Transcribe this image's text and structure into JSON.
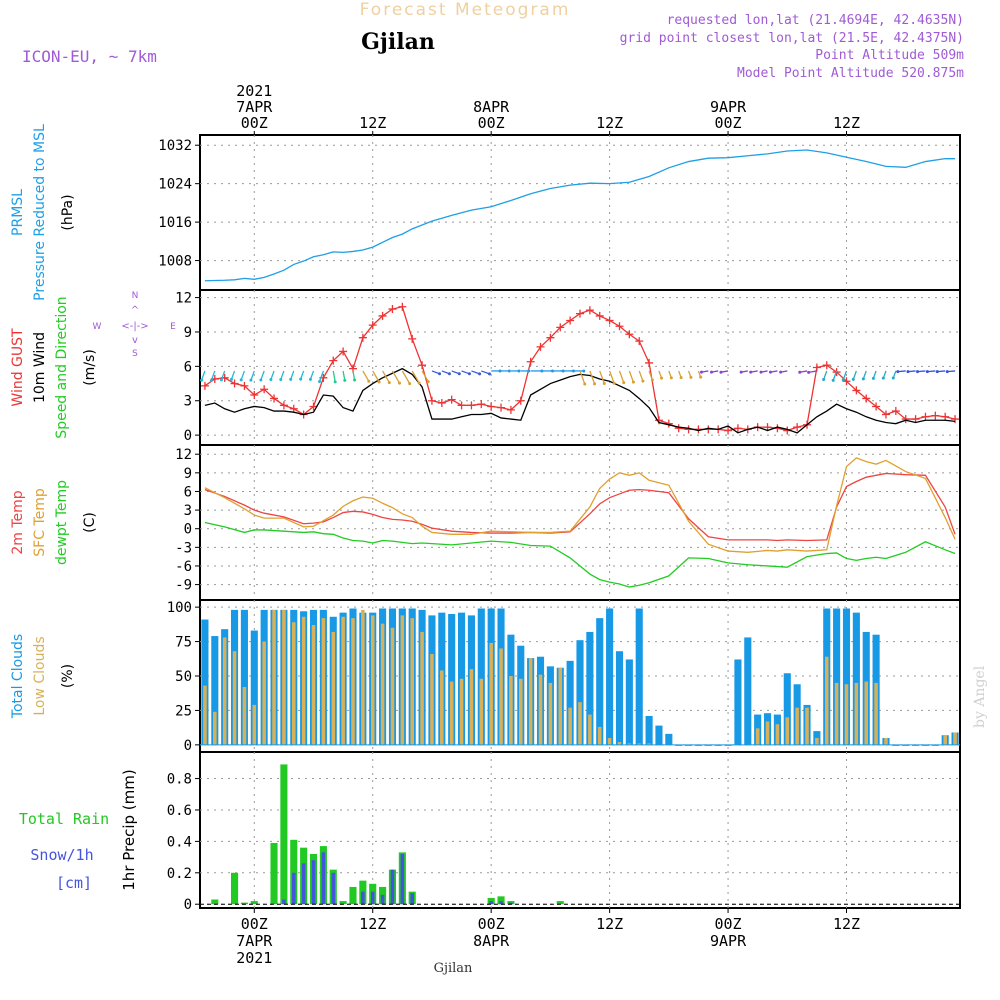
{
  "header": {
    "title": "Forecast Meteogram",
    "location": "Gjilan",
    "model": "ICON-EU, ~ 7km",
    "requested": "requested lon,lat (21.4694E, 42.4635N)",
    "grid_point": "grid point closest lon,lat (21.5E, 42.4375N)",
    "point_altitude": "Point Altitude 509m",
    "model_altitude": "Model Point Altitude 520.875m",
    "footer_location": "Gjilan",
    "watermark": "by Angel"
  },
  "time_axis": {
    "top_labels": [
      {
        "t": 0,
        "lines": [
          "2021",
          "7APR",
          "00Z"
        ]
      },
      {
        "t": 12,
        "lines": [
          "12Z"
        ]
      },
      {
        "t": 24,
        "lines": [
          "8APR",
          "00Z"
        ]
      },
      {
        "t": 36,
        "lines": [
          "12Z"
        ]
      },
      {
        "t": 48,
        "lines": [
          "9APR",
          "00Z"
        ]
      },
      {
        "t": 60,
        "lines": [
          "12Z"
        ]
      }
    ],
    "bottom_labels": [
      {
        "t": 0,
        "lines": [
          "00Z",
          "7APR",
          "2021"
        ]
      },
      {
        "t": 12,
        "lines": [
          "12Z"
        ]
      },
      {
        "t": 24,
        "lines": [
          "00Z",
          "8APR"
        ]
      },
      {
        "t": 36,
        "lines": [
          "12Z"
        ]
      },
      {
        "t": 48,
        "lines": [
          "00Z",
          "9APR"
        ]
      },
      {
        "t": 60,
        "lines": [
          "12Z"
        ]
      }
    ]
  },
  "colors": {
    "pressure": "#1f9fe6",
    "gust": "#ee3333",
    "wind": "#000000",
    "temp2m": "#ee4444",
    "sfc_temp": "#e0a030",
    "dewpt": "#22cc22",
    "total_clouds": "#1799e6",
    "low_clouds": "#d6b15a",
    "rain": "#22c922",
    "snow": "#4455dd",
    "purple": "#a05ad6",
    "title_orange": "#f0d0a0"
  },
  "chart_data": [
    {
      "type": "line",
      "name": "Pressure",
      "label_lines": [
        "PRMSL",
        "Pressure Reduced to MSL"
      ],
      "unit": "(hPa)",
      "ylim": [
        1002.5,
        1033.5
      ],
      "yticks": [
        1008,
        1016,
        1024,
        1032
      ],
      "x": [
        -5,
        -3,
        -2,
        -1,
        0,
        1,
        2,
        3,
        4,
        5,
        6,
        7,
        8,
        9,
        10,
        11,
        12,
        13,
        14,
        15,
        16,
        18,
        20,
        22,
        24,
        26,
        28,
        30,
        32,
        34,
        36,
        38,
        40,
        42,
        44,
        46,
        48,
        50,
        52,
        54,
        56,
        58,
        60,
        62,
        64,
        66,
        68,
        70,
        71
      ],
      "series": [
        {
          "name": "PRMSL",
          "values": [
            1003.8,
            1003.9,
            1004.0,
            1004.3,
            1004.1,
            1004.5,
            1005.2,
            1006.0,
            1007.2,
            1007.9,
            1008.8,
            1009.2,
            1009.8,
            1009.7,
            1009.9,
            1010.2,
            1010.8,
            1011.8,
            1012.8,
            1013.5,
            1014.6,
            1016.2,
            1017.4,
            1018.5,
            1019.2,
            1020.5,
            1021.9,
            1023.0,
            1023.7,
            1024.1,
            1024.0,
            1024.3,
            1025.5,
            1027.3,
            1028.6,
            1029.3,
            1029.4,
            1029.8,
            1030.2,
            1030.8,
            1031.0,
            1030.4,
            1029.5,
            1028.6,
            1027.6,
            1027.4,
            1028.6,
            1029.2,
            1029.2
          ]
        }
      ]
    },
    {
      "type": "line",
      "name": "Wind",
      "label_lines": [
        "Wind GUST",
        "10m Wind",
        "Speed and Direction"
      ],
      "unit": "(m/s)",
      "compass": "N  W <-|-> E  S",
      "ylim": [
        -0.6,
        12.4
      ],
      "yticks": [
        0,
        3,
        6,
        9,
        12
      ],
      "x": [
        -5,
        -4,
        -3,
        -2,
        -1,
        0,
        1,
        2,
        3,
        4,
        5,
        6,
        7,
        8,
        9,
        10,
        11,
        12,
        13,
        14,
        15,
        16,
        17,
        18,
        19,
        20,
        21,
        22,
        23,
        24,
        25,
        26,
        27,
        28,
        29,
        30,
        31,
        32,
        33,
        34,
        35,
        36,
        37,
        38,
        39,
        40,
        41,
        42,
        43,
        44,
        45,
        46,
        47,
        48,
        49,
        50,
        51,
        52,
        53,
        54,
        55,
        56,
        57,
        58,
        59,
        60,
        61,
        62,
        63,
        64,
        65,
        66,
        67,
        68,
        69,
        70,
        71
      ],
      "series": [
        {
          "name": "Wind GUST",
          "values": [
            4.3,
            4.9,
            5.0,
            4.5,
            4.3,
            3.5,
            4.0,
            3.2,
            2.6,
            2.3,
            1.8,
            2.5,
            5.0,
            6.5,
            7.3,
            5.8,
            8.5,
            9.6,
            10.4,
            11.0,
            11.2,
            8.4,
            6.1,
            3.0,
            2.8,
            3.1,
            2.6,
            2.6,
            2.7,
            2.5,
            2.4,
            2.2,
            3.0,
            6.4,
            7.7,
            8.5,
            9.4,
            10.0,
            10.6,
            10.9,
            10.4,
            10.0,
            9.5,
            8.8,
            8.2,
            6.3,
            1.3,
            1.0,
            0.6,
            0.5,
            0.5,
            0.5,
            0.5,
            0.4,
            0.6,
            0.5,
            0.7,
            0.7,
            0.6,
            0.4,
            0.7,
            0.9,
            5.9,
            6.1,
            5.5,
            4.7,
            3.9,
            3.2,
            2.5,
            1.8,
            2.1,
            1.4,
            1.4,
            1.6,
            1.7,
            1.6,
            1.4
          ]
        },
        {
          "name": "10m Wind",
          "values": [
            2.6,
            2.8,
            2.3,
            2.0,
            2.3,
            2.5,
            2.4,
            2.1,
            2.1,
            2.0,
            1.8,
            2.0,
            3.5,
            3.4,
            2.4,
            2.1,
            3.9,
            4.5,
            5.0,
            5.4,
            5.8,
            5.3,
            4.2,
            1.4,
            1.4,
            1.4,
            1.6,
            1.8,
            1.8,
            1.9,
            1.5,
            1.4,
            1.3,
            3.5,
            4.0,
            4.5,
            4.8,
            5.1,
            5.3,
            5.2,
            4.9,
            4.7,
            4.3,
            3.9,
            3.2,
            2.4,
            1.1,
            0.9,
            0.7,
            0.6,
            0.4,
            0.6,
            0.5,
            0.8,
            0.2,
            0.5,
            0.7,
            0.4,
            0.7,
            0.5,
            0.2,
            0.9,
            1.6,
            2.1,
            2.7,
            2.3,
            2.0,
            1.6,
            1.3,
            1.1,
            1.0,
            1.3,
            1.1,
            1.3,
            1.3,
            1.3,
            1.2
          ]
        }
      ],
      "direction_arrows": {
        "y": 5.6,
        "note": "wind barbs plotted along top of 10m wind trace"
      }
    },
    {
      "type": "line",
      "name": "Temperature",
      "label_lines": [
        "2m Temp",
        "SFC Temp",
        "dewpt Temp"
      ],
      "unit": "(C)",
      "ylim": [
        -11,
        13
      ],
      "yticks": [
        -9,
        -6,
        -3,
        0,
        3,
        6,
        9,
        12
      ],
      "x": [
        -5,
        -3,
        -1,
        0,
        1,
        3,
        5,
        6,
        7,
        8,
        9,
        10,
        11,
        12,
        13,
        14,
        15,
        16,
        17,
        18,
        20,
        22,
        24,
        26,
        28,
        30,
        32,
        34,
        35,
        36,
        37,
        38,
        39,
        40,
        42,
        44,
        46,
        48,
        50,
        52,
        53,
        54,
        56,
        58,
        59,
        60,
        61,
        62,
        63,
        64,
        66,
        68,
        70,
        71
      ],
      "series": [
        {
          "name": "2m Temp",
          "values": [
            6.3,
            5.2,
            3.8,
            3.0,
            2.5,
            1.9,
            0.8,
            0.9,
            1.1,
            1.8,
            2.6,
            2.8,
            2.7,
            2.3,
            1.8,
            1.5,
            1.4,
            1.2,
            0.7,
            0.1,
            -0.4,
            -0.6,
            -0.7,
            -0.7,
            -0.6,
            -0.7,
            -0.5,
            2.4,
            4.0,
            5.0,
            5.6,
            6.2,
            6.3,
            6.2,
            5.8,
            1.6,
            -1.3,
            -1.8,
            -1.8,
            -1.8,
            -1.9,
            -1.8,
            -1.9,
            -1.8,
            3.5,
            6.8,
            7.6,
            8.3,
            8.6,
            8.9,
            8.7,
            8.6,
            3.5,
            -0.9
          ]
        },
        {
          "name": "SFC Temp",
          "values": [
            6.6,
            5.0,
            3.2,
            2.2,
            1.7,
            1.7,
            0.3,
            0.4,
            1.3,
            2.2,
            3.6,
            4.5,
            5.1,
            4.9,
            4.1,
            3.4,
            2.4,
            1.8,
            0.4,
            -0.6,
            -0.9,
            -0.9,
            -0.4,
            -0.5,
            -0.6,
            -0.6,
            -0.4,
            3.5,
            6.5,
            8.0,
            9.0,
            8.6,
            9.0,
            7.8,
            7.0,
            1.2,
            -2.5,
            -3.6,
            -3.8,
            -3.5,
            -3.6,
            -3.4,
            -3.6,
            -3.4,
            3.7,
            10.0,
            11.4,
            10.8,
            10.4,
            11.0,
            9.2,
            8.1,
            1.8,
            -1.7
          ]
        },
        {
          "name": "dewpt Temp",
          "values": [
            1.0,
            0.3,
            -0.6,
            -0.2,
            -0.2,
            -0.4,
            -0.6,
            -0.5,
            -0.8,
            -0.9,
            -1.5,
            -1.9,
            -2.0,
            -2.3,
            -1.9,
            -2.0,
            -2.2,
            -2.4,
            -2.3,
            -2.4,
            -2.6,
            -2.3,
            -2.0,
            -2.2,
            -2.7,
            -2.8,
            -4.7,
            -7.3,
            -8.2,
            -8.6,
            -8.9,
            -9.4,
            -9.1,
            -8.7,
            -7.6,
            -4.7,
            -4.8,
            -5.5,
            -5.8,
            -6.0,
            -6.1,
            -6.2,
            -4.5,
            -4.0,
            -3.9,
            -4.8,
            -5.1,
            -4.8,
            -4.6,
            -4.8,
            -3.8,
            -2.1,
            -3.4,
            -4.0
          ]
        }
      ]
    },
    {
      "type": "bar",
      "name": "Clouds",
      "label_lines": [
        "Total Clouds",
        "Low Clouds"
      ],
      "unit": "(%)",
      "ylim": [
        -3,
        103
      ],
      "yticks": [
        0,
        25,
        50,
        75,
        100
      ],
      "x": [
        -5,
        -4,
        -3,
        -2,
        -1,
        0,
        1,
        2,
        3,
        4,
        5,
        6,
        7,
        8,
        9,
        10,
        11,
        12,
        13,
        14,
        15,
        16,
        17,
        18,
        19,
        20,
        21,
        22,
        23,
        24,
        25,
        26,
        27,
        28,
        29,
        30,
        31,
        32,
        33,
        34,
        35,
        36,
        37,
        38,
        39,
        40,
        41,
        42,
        43,
        44,
        45,
        46,
        47,
        48,
        49,
        50,
        51,
        52,
        53,
        54,
        55,
        56,
        57,
        58,
        59,
        60,
        61,
        62,
        63,
        64,
        65,
        66,
        67,
        68,
        69,
        70,
        71
      ],
      "series": [
        {
          "name": "Total Clouds",
          "values": [
            91,
            79,
            84,
            98,
            98,
            83,
            98,
            98,
            98,
            98,
            97,
            98,
            98,
            93,
            96,
            99,
            96,
            96,
            99,
            99,
            99,
            99,
            98,
            94,
            96,
            95,
            96,
            94,
            99,
            99,
            99,
            80,
            72,
            63,
            64,
            57,
            56,
            61,
            76,
            82,
            92,
            99,
            68,
            62,
            99,
            21,
            14,
            8,
            0,
            0,
            0,
            0,
            0,
            0,
            62,
            78,
            22,
            23,
            22,
            52,
            44,
            29,
            10,
            99,
            99,
            99,
            96,
            82,
            80,
            5,
            0,
            0,
            0,
            0,
            0,
            7,
            9
          ]
        },
        {
          "name": "Low Clouds",
          "values": [
            43,
            24,
            78,
            68,
            42,
            29,
            75,
            98,
            98,
            89,
            93,
            87,
            92,
            82,
            93,
            92,
            98,
            94,
            88,
            85,
            94,
            92,
            82,
            66,
            54,
            46,
            48,
            55,
            48,
            74,
            70,
            50,
            48,
            63,
            51,
            45,
            56,
            27,
            31,
            22,
            13,
            5,
            2,
            1,
            1,
            1,
            0,
            0,
            0,
            0,
            0,
            0,
            0,
            0,
            0,
            0,
            12,
            17,
            15,
            20,
            27,
            27,
            5,
            64,
            45,
            44,
            45,
            46,
            45,
            5,
            0,
            0,
            0,
            0,
            0,
            7,
            9
          ]
        }
      ]
    },
    {
      "type": "bar",
      "name": "Precipitation",
      "label_lines": [
        "Total Rain",
        "Snow/1h",
        "[cm]"
      ],
      "ylabel": "1hr Precip (mm)",
      "ylim": [
        -0.005,
        0.95
      ],
      "yticks": [
        0,
        0.2,
        0.4,
        0.6,
        0.8
      ],
      "ytick_labels": [
        "0",
        "0.2",
        "0.4",
        "0.6",
        "0.8"
      ],
      "x": [
        -4,
        -2,
        -1,
        0,
        2,
        3,
        4,
        5,
        6,
        7,
        8,
        9,
        10,
        11,
        12,
        13,
        14,
        15,
        16,
        24,
        25,
        26,
        31
      ],
      "series": [
        {
          "name": "Total Rain",
          "values": [
            0.03,
            0.2,
            0.01,
            0.02,
            0.39,
            0.89,
            0.41,
            0.36,
            0.32,
            0.37,
            0.22,
            0.02,
            0.11,
            0.15,
            0.13,
            0.11,
            0.22,
            0.33,
            0.08,
            0.04,
            0.05,
            0.02,
            0.02
          ]
        },
        {
          "name": "Snow/1h",
          "values": [
            0.0,
            0.0,
            0.0,
            0.0,
            0.0,
            0.03,
            0.2,
            0.26,
            0.28,
            0.33,
            0.2,
            0.0,
            0.0,
            0.08,
            0.08,
            0.06,
            0.22,
            0.32,
            0.07,
            0.02,
            0.02,
            0.01,
            0.0
          ]
        }
      ]
    }
  ]
}
